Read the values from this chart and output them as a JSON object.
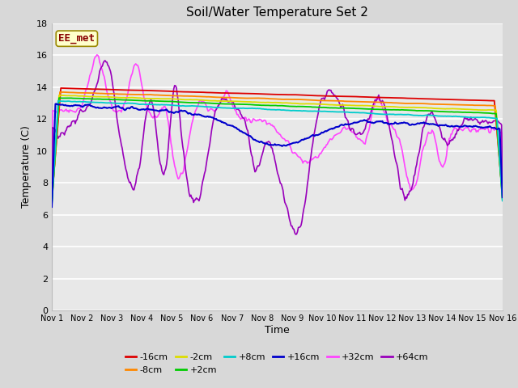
{
  "title": "Soil/Water Temperature Set 2",
  "xlabel": "Time",
  "ylabel": "Temperature (C)",
  "ylim": [
    0,
    18
  ],
  "yticks": [
    0,
    2,
    4,
    6,
    8,
    10,
    12,
    14,
    16,
    18
  ],
  "x_labels": [
    "Nov 1",
    "Nov 2",
    "Nov 3",
    "Nov 4",
    "Nov 5",
    "Nov 6",
    "Nov 7",
    "Nov 8",
    "Nov 9",
    "Nov 10",
    "Nov 11",
    "Nov 12",
    "Nov 13",
    "Nov 14",
    "Nov 15",
    "Nov 16"
  ],
  "legend_entries": [
    "-16cm",
    "-8cm",
    "-2cm",
    "+2cm",
    "+8cm",
    "+16cm",
    "+32cm",
    "+64cm"
  ],
  "line_colors": [
    "#dd0000",
    "#ff8800",
    "#dddd00",
    "#00cc00",
    "#00cccc",
    "#0000cc",
    "#ff44ff",
    "#9900bb"
  ],
  "annotation_text": "EE_met",
  "annotation_color": "#880000",
  "annotation_bg": "#ffffcc",
  "fig_bg": "#d8d8d8",
  "plot_bg": "#e8e8e8",
  "grid_color": "#ffffff",
  "n_points": 500
}
